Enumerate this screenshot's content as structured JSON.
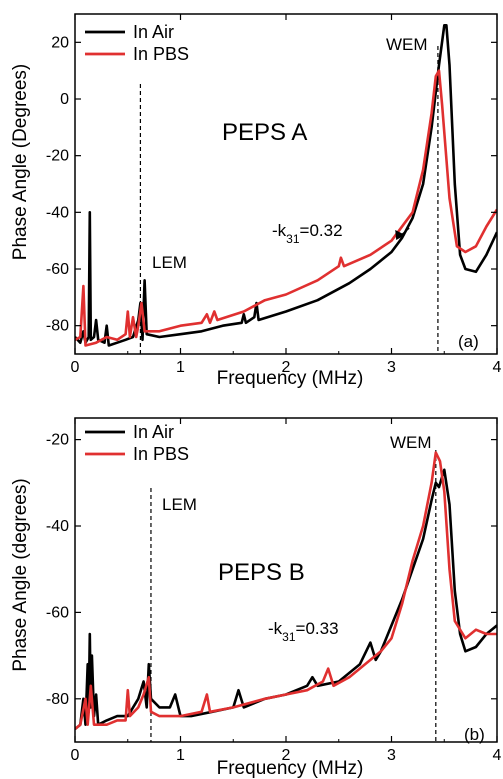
{
  "chart_data": [
    {
      "type": "line",
      "panel_tag": "(a)",
      "title": "PEPS A",
      "xlabel": "Frequency (MHz)",
      "ylabel": "Phase Angle (Degrees)",
      "xlim": [
        0,
        4
      ],
      "ylim": [
        -90,
        30
      ],
      "xticks": [
        0,
        1,
        2,
        3,
        4
      ],
      "yticks": [
        -80,
        -60,
        -40,
        -20,
        0,
        20
      ],
      "legend_position": "top-left",
      "annotations": {
        "lem": "LEM",
        "wem": "WEM",
        "k31_prefix": "-k",
        "k31_sub": "31",
        "k31_value": "=0.32"
      },
      "markers": {
        "lem_x": 0.62,
        "wem_x": 3.44,
        "arrow_from": [
          2.58,
          -47
        ],
        "arrow_to": [
          3.13,
          -48
        ]
      },
      "series": [
        {
          "name": "In Air",
          "color": "#000000",
          "points": [
            [
              0,
              -84
            ],
            [
              0.05,
              -86
            ],
            [
              0.08,
              -82
            ],
            [
              0.1,
              -86
            ],
            [
              0.13,
              -84
            ],
            [
              0.14,
              -40
            ],
            [
              0.15,
              -85
            ],
            [
              0.18,
              -84
            ],
            [
              0.2,
              -78
            ],
            [
              0.22,
              -85
            ],
            [
              0.28,
              -86
            ],
            [
              0.3,
              -80
            ],
            [
              0.32,
              -87
            ],
            [
              0.4,
              -86
            ],
            [
              0.48,
              -85
            ],
            [
              0.55,
              -84
            ],
            [
              0.6,
              -78
            ],
            [
              0.62,
              -72
            ],
            [
              0.64,
              -85
            ],
            [
              0.66,
              -64
            ],
            [
              0.68,
              -83
            ],
            [
              0.8,
              -84
            ],
            [
              1.0,
              -83
            ],
            [
              1.2,
              -82
            ],
            [
              1.4,
              -80
            ],
            [
              1.58,
              -79
            ],
            [
              1.6,
              -76
            ],
            [
              1.62,
              -79
            ],
            [
              1.7,
              -77
            ],
            [
              1.72,
              -72
            ],
            [
              1.74,
              -78
            ],
            [
              2.0,
              -75
            ],
            [
              2.3,
              -71
            ],
            [
              2.6,
              -65
            ],
            [
              2.8,
              -60
            ],
            [
              3.0,
              -54
            ],
            [
              3.1,
              -49
            ],
            [
              3.2,
              -42
            ],
            [
              3.3,
              -30
            ],
            [
              3.38,
              -10
            ],
            [
              3.45,
              12
            ],
            [
              3.5,
              26
            ],
            [
              3.52,
              26
            ],
            [
              3.55,
              12
            ],
            [
              3.6,
              -30
            ],
            [
              3.65,
              -55
            ],
            [
              3.7,
              -60
            ],
            [
              3.8,
              -61
            ],
            [
              3.9,
              -55
            ],
            [
              4.0,
              -47
            ]
          ]
        },
        {
          "name": "In PBS",
          "color": "#e03030",
          "points": [
            [
              0,
              -85
            ],
            [
              0.05,
              -84
            ],
            [
              0.08,
              -66
            ],
            [
              0.1,
              -87
            ],
            [
              0.2,
              -86
            ],
            [
              0.3,
              -84
            ],
            [
              0.4,
              -85
            ],
            [
              0.48,
              -83
            ],
            [
              0.5,
              -75
            ],
            [
              0.52,
              -84
            ],
            [
              0.55,
              -77
            ],
            [
              0.58,
              -84
            ],
            [
              0.6,
              -80
            ],
            [
              0.63,
              -72
            ],
            [
              0.66,
              -82
            ],
            [
              0.8,
              -82
            ],
            [
              1.0,
              -80
            ],
            [
              1.2,
              -79
            ],
            [
              1.25,
              -76
            ],
            [
              1.28,
              -79
            ],
            [
              1.32,
              -75
            ],
            [
              1.35,
              -78
            ],
            [
              1.6,
              -75
            ],
            [
              1.8,
              -71
            ],
            [
              2.0,
              -69
            ],
            [
              2.3,
              -64
            ],
            [
              2.5,
              -59
            ],
            [
              2.52,
              -56
            ],
            [
              2.55,
              -59
            ],
            [
              2.8,
              -55
            ],
            [
              3.0,
              -50
            ],
            [
              3.2,
              -40
            ],
            [
              3.3,
              -25
            ],
            [
              3.38,
              -5
            ],
            [
              3.42,
              8
            ],
            [
              3.45,
              10
            ],
            [
              3.48,
              -2
            ],
            [
              3.55,
              -35
            ],
            [
              3.62,
              -52
            ],
            [
              3.7,
              -54
            ],
            [
              3.8,
              -52
            ],
            [
              3.9,
              -45
            ],
            [
              4.0,
              -39
            ]
          ]
        }
      ]
    },
    {
      "type": "line",
      "panel_tag": "(b)",
      "title": "PEPS B",
      "xlabel": "Frequency (MHz)",
      "ylabel": "Phase Angle (degrees)",
      "xlim": [
        0,
        4
      ],
      "ylim": [
        -90,
        -15
      ],
      "xticks": [
        0,
        1,
        2,
        3,
        4
      ],
      "yticks": [
        -80,
        -60,
        -40,
        -20
      ],
      "legend_position": "top-left",
      "annotations": {
        "lem": "LEM",
        "wem": "WEM",
        "k31_prefix": "-k",
        "k31_sub": "31",
        "k31_value": "=0.33"
      },
      "markers": {
        "lem_x": 0.72,
        "wem_x": 3.42
      },
      "series": [
        {
          "name": "In Air",
          "color": "#000000",
          "points": [
            [
              0,
              -87
            ],
            [
              0.05,
              -86
            ],
            [
              0.08,
              -80
            ],
            [
              0.1,
              -86
            ],
            [
              0.12,
              -72
            ],
            [
              0.13,
              -83
            ],
            [
              0.14,
              -65
            ],
            [
              0.15,
              -82
            ],
            [
              0.16,
              -70
            ],
            [
              0.18,
              -84
            ],
            [
              0.2,
              -79
            ],
            [
              0.22,
              -86
            ],
            [
              0.3,
              -85
            ],
            [
              0.4,
              -84
            ],
            [
              0.5,
              -84
            ],
            [
              0.6,
              -80
            ],
            [
              0.65,
              -76
            ],
            [
              0.68,
              -82
            ],
            [
              0.7,
              -72
            ],
            [
              0.72,
              -80
            ],
            [
              0.8,
              -82
            ],
            [
              0.9,
              -82
            ],
            [
              0.95,
              -79
            ],
            [
              1.0,
              -84
            ],
            [
              1.1,
              -84
            ],
            [
              1.3,
              -83
            ],
            [
              1.5,
              -82
            ],
            [
              1.55,
              -78
            ],
            [
              1.6,
              -82
            ],
            [
              1.8,
              -80
            ],
            [
              2.0,
              -79
            ],
            [
              2.2,
              -77
            ],
            [
              2.25,
              -75
            ],
            [
              2.3,
              -77
            ],
            [
              2.5,
              -76
            ],
            [
              2.7,
              -72
            ],
            [
              2.8,
              -67
            ],
            [
              2.85,
              -71
            ],
            [
              2.9,
              -69
            ],
            [
              3.0,
              -63
            ],
            [
              3.1,
              -57
            ],
            [
              3.2,
              -50
            ],
            [
              3.3,
              -43
            ],
            [
              3.38,
              -34
            ],
            [
              3.42,
              -30
            ],
            [
              3.45,
              -31
            ],
            [
              3.5,
              -27
            ],
            [
              3.55,
              -35
            ],
            [
              3.6,
              -55
            ],
            [
              3.65,
              -65
            ],
            [
              3.7,
              -69
            ],
            [
              3.8,
              -68
            ],
            [
              3.9,
              -65
            ],
            [
              4.0,
              -63
            ]
          ]
        },
        {
          "name": "In PBS",
          "color": "#e03030",
          "points": [
            [
              0,
              -87
            ],
            [
              0.05,
              -86
            ],
            [
              0.1,
              -80
            ],
            [
              0.12,
              -86
            ],
            [
              0.15,
              -77
            ],
            [
              0.18,
              -86
            ],
            [
              0.3,
              -86
            ],
            [
              0.4,
              -85
            ],
            [
              0.48,
              -85
            ],
            [
              0.5,
              -78
            ],
            [
              0.52,
              -84
            ],
            [
              0.6,
              -82
            ],
            [
              0.65,
              -79
            ],
            [
              0.7,
              -75
            ],
            [
              0.72,
              -83
            ],
            [
              0.8,
              -84
            ],
            [
              1.0,
              -84
            ],
            [
              1.2,
              -83
            ],
            [
              1.25,
              -79
            ],
            [
              1.28,
              -83
            ],
            [
              1.5,
              -82
            ],
            [
              1.8,
              -80
            ],
            [
              2.0,
              -79
            ],
            [
              2.2,
              -78
            ],
            [
              2.35,
              -76
            ],
            [
              2.4,
              -73
            ],
            [
              2.45,
              -77
            ],
            [
              2.6,
              -75
            ],
            [
              2.8,
              -71
            ],
            [
              2.9,
              -69
            ],
            [
              3.0,
              -66
            ],
            [
              3.1,
              -58
            ],
            [
              3.2,
              -48
            ],
            [
              3.3,
              -40
            ],
            [
              3.38,
              -30
            ],
            [
              3.42,
              -23
            ],
            [
              3.46,
              -25
            ],
            [
              3.5,
              -32
            ],
            [
              3.55,
              -50
            ],
            [
              3.6,
              -62
            ],
            [
              3.7,
              -66
            ],
            [
              3.8,
              -64
            ],
            [
              3.9,
              -65
            ],
            [
              4.0,
              -65
            ]
          ]
        }
      ]
    }
  ]
}
